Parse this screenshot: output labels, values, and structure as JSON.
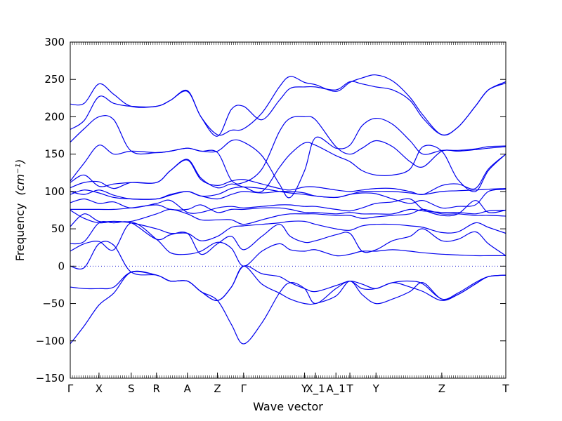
{
  "chart_data": {
    "type": "line",
    "title": "",
    "xlabel": "Wave vector",
    "ylabel": "Frequency",
    "ylabel_unit": "(cm⁻¹)",
    "ylim": [
      -150,
      300
    ],
    "yticks": [
      -150,
      -100,
      -50,
      0,
      50,
      100,
      150,
      200,
      250,
      300
    ],
    "xlim": [
      0,
      100
    ],
    "x_labels": [
      {
        "label": "Γ",
        "x": 0.0
      },
      {
        "label": "X",
        "x": 6.6
      },
      {
        "label": "S",
        "x": 14.0
      },
      {
        "label": "R",
        "x": 19.8
      },
      {
        "label": "A",
        "x": 26.9
      },
      {
        "label": "Z",
        "x": 33.8
      },
      {
        "label": "Γ",
        "x": 39.8
      },
      {
        "label": "Y",
        "x": 53.8
      },
      {
        "label": "X_1",
        "x": 56.3
      },
      {
        "label": "A_1",
        "x": 61.0
      },
      {
        "label": "T",
        "x": 64.2
      },
      {
        "label": "Y",
        "x": 70.2
      },
      {
        "label": "Z",
        "x": 85.3
      },
      {
        "label": "T",
        "x": 100.0
      }
    ],
    "zero_line": true,
    "line_color": "#0000ee",
    "series": [
      {
        "x": [
          0,
          3.2,
          6.6,
          10,
          14,
          19.8,
          23,
          26.9,
          30,
          33.8,
          37,
          39.8,
          44,
          48,
          50.5,
          53.8,
          56.3,
          61,
          64.2,
          67,
          70.2,
          74,
          78,
          81,
          85.3,
          89,
          93,
          96,
          100
        ],
        "y": [
          217,
          218,
          244,
          230,
          214,
          214,
          222,
          235,
          200,
          176,
          182,
          184,
          205,
          240,
          254,
          246,
          243,
          234,
          246,
          252,
          256,
          248,
          226,
          202,
          176,
          186,
          214,
          236,
          247
        ]
      },
      {
        "x": [
          0,
          3.2,
          6.6,
          10,
          14,
          19.8,
          23,
          26.9,
          30,
          33.8,
          37,
          39.8,
          44,
          48,
          50.5,
          53.8,
          56.3,
          61,
          64.2,
          67,
          70.2,
          74,
          78,
          81,
          85.3,
          89,
          93,
          96,
          100
        ],
        "y": [
          183,
          195,
          227,
          218,
          214,
          214,
          222,
          234,
          200,
          174,
          210,
          214,
          196,
          222,
          238,
          240,
          240,
          236,
          247,
          244,
          240,
          236,
          222,
          198,
          176,
          186,
          214,
          236,
          245
        ]
      },
      {
        "x": [
          0,
          3.2,
          6.6,
          10,
          14,
          19.8,
          23,
          26.9,
          30,
          33.8,
          37,
          39.8,
          44,
          48,
          50.5,
          53.8,
          56.3,
          61,
          64.2,
          67,
          70.2,
          74,
          78,
          81,
          85.3,
          89,
          93,
          96,
          100
        ],
        "y": [
          166,
          184,
          200,
          196,
          154,
          152,
          154,
          158,
          154,
          154,
          168,
          166,
          148,
          110,
          92,
          128,
          172,
          158,
          162,
          188,
          198,
          190,
          168,
          150,
          155,
          155,
          157,
          160,
          161
        ]
      },
      {
        "x": [
          0,
          3.2,
          6.6,
          10,
          14,
          19.8,
          23,
          26.9,
          30,
          33.8,
          37,
          39.8,
          44,
          48,
          50.5,
          53.8,
          56.3,
          61,
          64.2,
          67,
          70.2,
          74,
          78,
          81,
          85.3,
          89,
          93,
          96,
          100
        ],
        "y": [
          114,
          138,
          162,
          150,
          154,
          152,
          154,
          158,
          154,
          152,
          115,
          112,
          130,
          180,
          198,
          200,
          196,
          160,
          150,
          158,
          168,
          160,
          140,
          133,
          154,
          154,
          156,
          158,
          160
        ]
      },
      {
        "x": [
          0,
          3.2,
          6.6,
          10,
          14,
          19.8,
          23,
          26.9,
          30,
          33.8,
          37,
          39.8,
          44,
          48,
          50.5,
          53.8,
          56.3,
          61,
          64.2,
          67,
          70.2,
          74,
          78,
          81,
          85.3,
          89,
          93,
          96,
          100
        ],
        "y": [
          112,
          122,
          107,
          110,
          112,
          112,
          128,
          143,
          118,
          105,
          110,
          106,
          100,
          132,
          150,
          165,
          162,
          148,
          140,
          128,
          122,
          122,
          130,
          160,
          154,
          116,
          100,
          128,
          150
        ]
      },
      {
        "x": [
          0,
          3.2,
          6.6,
          10,
          14,
          19.8,
          23,
          26.9,
          30,
          33.8,
          37,
          39.8,
          44,
          48,
          50.5,
          53.8,
          56.3,
          61,
          64.2,
          67,
          70.2,
          74,
          78,
          81,
          85.3,
          89,
          93,
          96,
          100
        ],
        "y": [
          105,
          112,
          113,
          104,
          112,
          112,
          128,
          142,
          116,
          108,
          114,
          116,
          110,
          104,
          102,
          106,
          106,
          102,
          100,
          102,
          104,
          104,
          100,
          96,
          108,
          110,
          104,
          130,
          150
        ]
      },
      {
        "x": [
          0,
          3.2,
          6.6,
          10,
          14,
          19.8,
          23,
          26.9,
          30,
          33.8,
          37,
          39.8,
          44,
          48,
          50.5,
          53.8,
          56.3,
          61,
          64.2,
          67,
          70.2,
          74,
          78,
          81,
          85.3,
          89,
          93,
          96,
          100
        ],
        "y": [
          100,
          96,
          102,
          95,
          90,
          90,
          96,
          100,
          94,
          96,
          104,
          106,
          104,
          100,
          98,
          96,
          94,
          92,
          96,
          100,
          100,
          100,
          98,
          96,
          100,
          101,
          102,
          103,
          104
        ]
      },
      {
        "x": [
          0,
          3.2,
          6.6,
          10,
          14,
          19.8,
          23,
          26.9,
          30,
          33.8,
          37,
          39.8,
          44,
          48,
          50.5,
          53.8,
          56.3,
          61,
          64.2,
          67,
          70.2,
          74,
          78,
          81,
          85.3,
          89,
          93,
          96,
          100
        ],
        "y": [
          96,
          102,
          98,
          92,
          90,
          90,
          95,
          100,
          94,
          90,
          96,
          100,
          98,
          100,
          100,
          98,
          94,
          92,
          96,
          98,
          97,
          90,
          84,
          88,
          78,
          80,
          82,
          100,
          103
        ]
      },
      {
        "x": [
          0,
          3.2,
          6.6,
          10,
          14,
          19.8,
          23,
          26.9,
          30,
          33.8,
          37,
          39.8,
          44,
          48,
          50.5,
          53.8,
          56.3,
          61,
          64.2,
          67,
          70.2,
          74,
          78,
          81,
          85.3,
          89,
          93,
          96,
          100
        ],
        "y": [
          85,
          90,
          84,
          86,
          78,
          84,
          88,
          72,
          72,
          78,
          80,
          78,
          80,
          82,
          82,
          80,
          80,
          76,
          74,
          78,
          84,
          86,
          90,
          76,
          68,
          70,
          88,
          72,
          75
        ]
      },
      {
        "x": [
          0,
          3.2,
          6.6,
          10,
          14,
          19.8,
          23,
          26.9,
          30,
          33.8,
          37,
          39.8,
          44,
          48,
          50.5,
          53.8,
          56.3,
          61,
          64.2,
          67,
          70.2,
          74,
          78,
          81,
          85.3,
          89,
          93,
          96,
          100
        ],
        "y": [
          76,
          76,
          76,
          76,
          78,
          82,
          76,
          76,
          82,
          72,
          76,
          76,
          78,
          78,
          76,
          72,
          72,
          70,
          72,
          70,
          70,
          70,
          76,
          74,
          72,
          72,
          70,
          74,
          75
        ]
      },
      {
        "x": [
          0,
          3.2,
          6.6,
          10,
          14,
          19.8,
          23,
          26.9,
          30,
          33.8,
          37,
          39.8,
          44,
          48,
          50.5,
          53.8,
          56.3,
          61,
          64.2,
          67,
          70.2,
          74,
          78,
          81,
          85.3,
          89,
          93,
          96,
          100
        ],
        "y": [
          75,
          64,
          58,
          60,
          60,
          70,
          76,
          70,
          62,
          62,
          62,
          56,
          62,
          68,
          70,
          70,
          70,
          68,
          68,
          64,
          66,
          68,
          70,
          76,
          70,
          70,
          68,
          68,
          67
        ]
      },
      {
        "x": [
          0,
          3.2,
          6.6,
          10,
          14,
          19.8,
          23,
          26.9,
          30,
          33.8,
          37,
          39.8,
          44,
          48,
          50.5,
          53.8,
          56.3,
          61,
          64.2,
          67,
          70.2,
          74,
          78,
          81,
          85.3,
          89,
          93,
          96,
          100
        ],
        "y": [
          53,
          70,
          60,
          60,
          58,
          50,
          44,
          44,
          34,
          40,
          52,
          54,
          56,
          58,
          60,
          60,
          56,
          50,
          48,
          54,
          56,
          56,
          54,
          52,
          45,
          46,
          58,
          52,
          44
        ]
      },
      {
        "x": [
          0,
          3.2,
          6.6,
          10,
          14,
          19.8,
          23,
          26.9,
          30,
          33.8,
          37,
          39.8,
          44,
          48,
          50.5,
          53.8,
          56.3,
          61,
          64.2,
          67,
          70.2,
          74,
          78,
          81,
          85.3,
          89,
          93,
          96,
          100
        ],
        "y": [
          30,
          33,
          58,
          58,
          58,
          36,
          42,
          44,
          16,
          30,
          40,
          22,
          40,
          56,
          40,
          32,
          34,
          42,
          44,
          20,
          22,
          34,
          40,
          50,
          34,
          36,
          46,
          30,
          14
        ]
      },
      {
        "x": [
          0,
          3.2,
          6.6,
          10,
          14,
          19.8,
          23,
          26.9,
          30,
          33.8,
          37,
          39.8,
          44,
          48,
          50.5,
          53.8,
          56.3,
          61,
          64.2,
          67,
          70.2,
          74,
          78,
          81,
          85.3,
          89,
          93,
          96,
          100
        ],
        "y": [
          20,
          30,
          33,
          22,
          58,
          36,
          18,
          16,
          20,
          32,
          24,
          0,
          20,
          30,
          22,
          20,
          22,
          14,
          16,
          20,
          20,
          22,
          20,
          18,
          16,
          15,
          14,
          14,
          14
        ]
      },
      {
        "x": [
          0,
          3.2,
          6.6,
          10,
          14,
          19.8,
          23,
          26.9,
          30,
          33.8,
          37,
          39.8,
          44,
          48,
          50.5,
          53.8,
          56.3,
          61,
          64.2,
          67,
          70.2,
          74,
          78,
          81,
          85.3,
          89,
          93,
          96,
          100
        ],
        "y": [
          0,
          -2,
          30,
          28,
          -8,
          -12,
          -20,
          -20,
          -34,
          -46,
          -28,
          0,
          -10,
          -14,
          -22,
          -30,
          -34,
          -26,
          -20,
          -24,
          -30,
          -22,
          -28,
          -34,
          -46,
          -38,
          -24,
          -14,
          -12
        ]
      },
      {
        "x": [
          0,
          3.2,
          6.6,
          10,
          14,
          19.8,
          23,
          26.9,
          30,
          33.8,
          37,
          39.8,
          44,
          48,
          50.5,
          53.8,
          56.3,
          61,
          64.2,
          67,
          70.2,
          74,
          78,
          81,
          85.3,
          89,
          93,
          96,
          100
        ],
        "y": [
          -28,
          -30,
          -30,
          -28,
          -8,
          -12,
          -20,
          -20,
          -34,
          -46,
          -28,
          0,
          -24,
          -36,
          -44,
          -50,
          -50,
          -40,
          -20,
          -38,
          -50,
          -44,
          -34,
          -22,
          -44,
          -36,
          -22,
          -14,
          -12
        ]
      },
      {
        "x": [
          0,
          3.2,
          6.6,
          10,
          14,
          19.8,
          23,
          26.9,
          30,
          33.8,
          37,
          39.8,
          44,
          48,
          50.5,
          53.8,
          56.3,
          61,
          64.2,
          67,
          70.2,
          74,
          78,
          81,
          85.3,
          89,
          93,
          96,
          100
        ],
        "y": [
          -104,
          -80,
          -52,
          -36,
          -8,
          -12,
          -20,
          -20,
          -34,
          -46,
          -78,
          -104,
          -76,
          -36,
          -22,
          -30,
          -50,
          -30,
          -20,
          -30,
          -30,
          -22,
          -20,
          -24,
          -44,
          -38,
          -24,
          -14,
          -12
        ]
      }
    ]
  }
}
